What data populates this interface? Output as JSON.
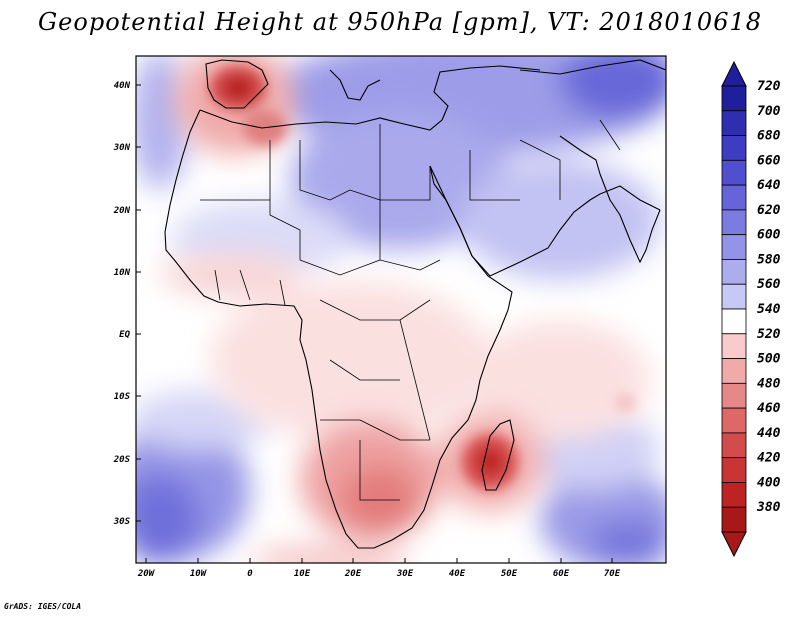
{
  "title": "Geopotential Height at 950hPa [gpm], VT: 2018010618",
  "credit": "GrADS: IGES/COLA",
  "map": {
    "lat_labels": [
      "40N",
      "30N",
      "20N",
      "10N",
      "EQ",
      "10S",
      "20S",
      "30S"
    ],
    "lon_labels": [
      "20W",
      "10W",
      "0",
      "10E",
      "20E",
      "30E",
      "40E",
      "50E",
      "60E",
      "70E"
    ]
  },
  "colorbar": {
    "levels": [
      "720",
      "700",
      "680",
      "660",
      "640",
      "620",
      "600",
      "580",
      "560",
      "540",
      "520",
      "500",
      "480",
      "460",
      "440",
      "420",
      "400",
      "380"
    ],
    "colors": [
      "#1f1f9e",
      "#2e2eb3",
      "#3d3dc4",
      "#4f4fd0",
      "#6565d9",
      "#7b7be0",
      "#9393e7",
      "#adadee",
      "#c8c8f5",
      "#ffffff",
      "#f8cccc",
      "#f0aaaa",
      "#e78888",
      "#de6868",
      "#d44b4b",
      "#c93535",
      "#bd2323",
      "#a81818"
    ]
  }
}
